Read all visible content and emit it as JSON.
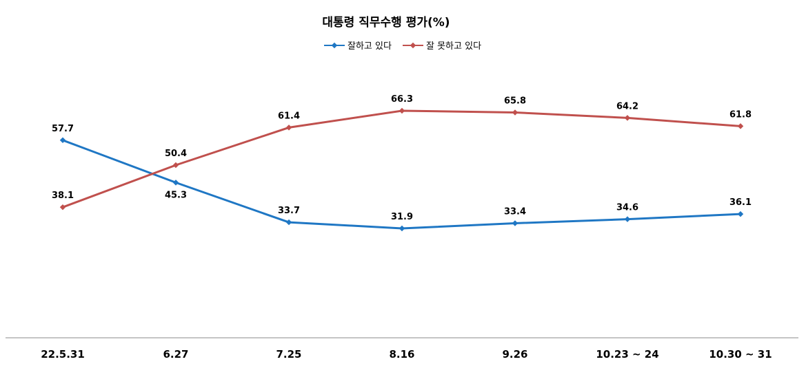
{
  "chart_data": {
    "type": "line",
    "title": "대통령 직무수행 평가(%)",
    "categories": [
      "22.5.31",
      "6.27",
      "7.25",
      "8.16",
      "9.26",
      "10.23 ~ 24",
      "10.30 ~ 31"
    ],
    "series": [
      {
        "name": "잘하고 있다",
        "color": "#1f77c4",
        "values": [
          57.7,
          45.3,
          33.7,
          31.9,
          33.4,
          34.6,
          36.1
        ]
      },
      {
        "name": "잘 못하고 있다",
        "color": "#c0504d",
        "values": [
          38.1,
          50.4,
          61.4,
          66.3,
          65.8,
          64.2,
          61.8
        ]
      }
    ],
    "legend_position": "top-center",
    "grid": false,
    "ylim": [
      0,
      80
    ]
  }
}
